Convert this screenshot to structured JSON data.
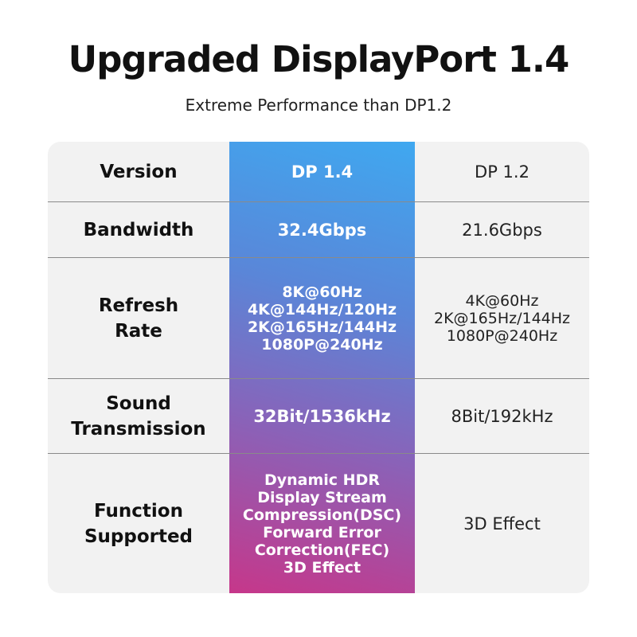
{
  "header": {
    "title": "Upgraded DisplayPort 1.4",
    "subtitle": "Extreme Performance than DP1.2"
  },
  "colors": {
    "gradient_top": "#3fa8f0",
    "gradient_bottom": "#c6378a",
    "table_bg": "#f2f2f2"
  },
  "rows": [
    {
      "label": [
        "Version"
      ],
      "dp14": [
        "DP 1.4"
      ],
      "dp12": [
        "DP 1.2"
      ]
    },
    {
      "label": [
        "Bandwidth"
      ],
      "dp14": [
        "32.4Gbps"
      ],
      "dp12": [
        "21.6Gbps"
      ]
    },
    {
      "label": [
        "Refresh",
        "Rate"
      ],
      "dp14": [
        "8K@60Hz",
        "4K@144Hz/120Hz",
        "2K@165Hz/144Hz",
        "1080P@240Hz"
      ],
      "dp12": [
        "4K@60Hz",
        "2K@165Hz/144Hz",
        "1080P@240Hz"
      ]
    },
    {
      "label": [
        "Sound",
        "Transmission"
      ],
      "dp14": [
        "32Bit/1536kHz"
      ],
      "dp12": [
        "8Bit/192kHz"
      ]
    },
    {
      "label": [
        "Function",
        "Supported"
      ],
      "dp14": [
        "Dynamic HDR",
        "Display Stream",
        "Compression(DSC)",
        "Forward Error",
        "Correction(FEC)",
        "3D Effect"
      ],
      "dp12": [
        "3D Effect"
      ]
    }
  ]
}
